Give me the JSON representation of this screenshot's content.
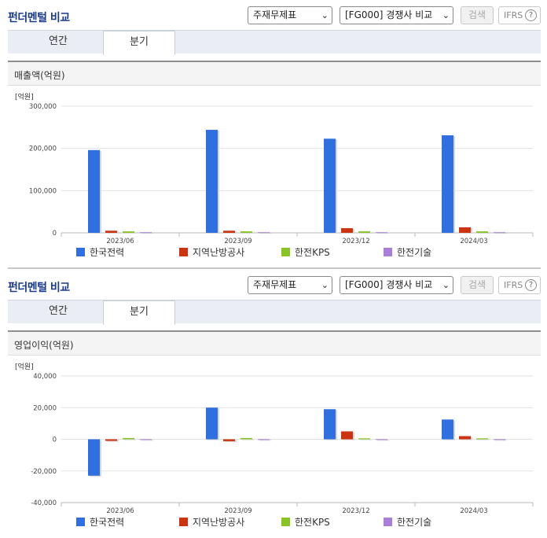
{
  "panels": [
    {
      "title": "펀더멘털 비교",
      "select_a": "주재무제표",
      "select_b": "[FG000] 경쟁사 비교",
      "search_label": "검색",
      "ifrs_label": "IFRS",
      "help_glyph": "?",
      "tabs": [
        {
          "label": "연간"
        },
        {
          "label": "분기"
        }
      ],
      "active_tab": 1,
      "metric_label": "매출액(억원)"
    },
    {
      "title": "펀더멘털 비교",
      "select_a": "주재무제표",
      "select_b": "[FG000] 경쟁사 비교",
      "search_label": "검색",
      "ifrs_label": "IFRS",
      "help_glyph": "?",
      "tabs": [
        {
          "label": "연간"
        },
        {
          "label": "분기"
        }
      ],
      "active_tab": 1,
      "metric_label": "영업이익(억원)"
    }
  ],
  "chart_data": [
    {
      "type": "bar",
      "unit_label": "[억원]",
      "categories": [
        "2023/06",
        "2023/09",
        "2023/12",
        "2024/03"
      ],
      "ylim": [
        0,
        300000
      ],
      "yticks": [
        0,
        100000,
        200000,
        300000
      ],
      "ytick_labels": [
        "0",
        "100,000",
        "200,000",
        "300,000"
      ],
      "grid": true,
      "legend_placement": "bottom",
      "series": [
        {
          "name": "한국전력",
          "color": "#2f6fe0",
          "values": [
            196000,
            244000,
            223000,
            231000
          ]
        },
        {
          "name": "지역난방공사",
          "color": "#cc3311",
          "values": [
            5000,
            5000,
            11000,
            13000
          ]
        },
        {
          "name": "한전KPS",
          "color": "#88c425",
          "values": [
            3500,
            3500,
            3500,
            3500
          ]
        },
        {
          "name": "한전기술",
          "color": "#a87ed8",
          "values": [
            1500,
            1500,
            1500,
            1500
          ]
        }
      ]
    },
    {
      "type": "bar",
      "unit_label": "[억원]",
      "categories": [
        "2023/06",
        "2023/09",
        "2023/12",
        "2024/03"
      ],
      "ylim": [
        -40000,
        40000
      ],
      "yticks": [
        -40000,
        -20000,
        0,
        20000,
        40000
      ],
      "ytick_labels": [
        "-40,000",
        "-20,000",
        "0",
        "20,000",
        "40,000"
      ],
      "grid": true,
      "legend_placement": "bottom",
      "series": [
        {
          "name": "한국전력",
          "color": "#2f6fe0",
          "values": [
            -23000,
            20000,
            19000,
            12500
          ]
        },
        {
          "name": "지역난방공사",
          "color": "#cc3311",
          "values": [
            -1000,
            -1200,
            5000,
            2000
          ]
        },
        {
          "name": "한전KPS",
          "color": "#88c425",
          "values": [
            800,
            800,
            600,
            600
          ]
        },
        {
          "name": "한전기술",
          "color": "#a87ed8",
          "values": [
            100,
            100,
            100,
            100
          ]
        }
      ]
    }
  ]
}
